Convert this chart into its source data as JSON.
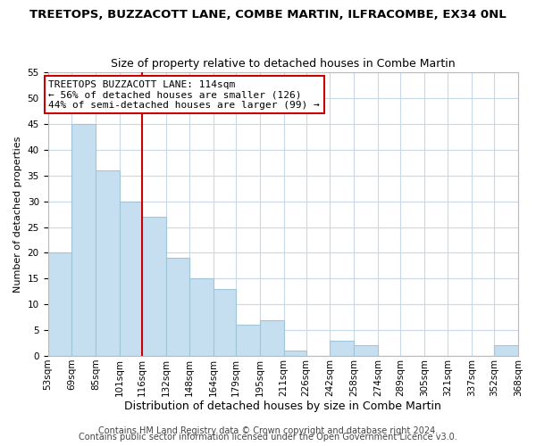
{
  "title": "TREETOPS, BUZZACOTT LANE, COMBE MARTIN, ILFRACOMBE, EX34 0NL",
  "subtitle": "Size of property relative to detached houses in Combe Martin",
  "xlabel": "Distribution of detached houses by size in Combe Martin",
  "ylabel": "Number of detached properties",
  "bar_color": "#c5dff0",
  "bar_edge_color": "#a0c4d8",
  "grid_color": "#c8d8e8",
  "bins": [
    53,
    69,
    85,
    101,
    116,
    132,
    148,
    164,
    179,
    195,
    211,
    226,
    242,
    258,
    274,
    289,
    305,
    321,
    337,
    352,
    368
  ],
  "bin_labels": [
    "53sqm",
    "69sqm",
    "85sqm",
    "101sqm",
    "116sqm",
    "132sqm",
    "148sqm",
    "164sqm",
    "179sqm",
    "195sqm",
    "211sqm",
    "226sqm",
    "242sqm",
    "258sqm",
    "274sqm",
    "289sqm",
    "305sqm",
    "321sqm",
    "337sqm",
    "352sqm",
    "368sqm"
  ],
  "counts": [
    20,
    45,
    36,
    30,
    27,
    19,
    15,
    13,
    6,
    7,
    1,
    0,
    3,
    2,
    0,
    0,
    0,
    0,
    0,
    2
  ],
  "vline_x": 116,
  "vline_color": "#cc0000",
  "annotation_line1": "TREETOPS BUZZACOTT LANE: 114sqm",
  "annotation_line2": "← 56% of detached houses are smaller (126)",
  "annotation_line3": "44% of semi-detached houses are larger (99) →",
  "annotation_box_color": "white",
  "annotation_box_edge_color": "#cc0000",
  "annotation_fontsize": 8.0,
  "ylim": [
    0,
    55
  ],
  "yticks": [
    0,
    5,
    10,
    15,
    20,
    25,
    30,
    35,
    40,
    45,
    50,
    55
  ],
  "footer1": "Contains HM Land Registry data © Crown copyright and database right 2024.",
  "footer2": "Contains public sector information licensed under the Open Government Licence v3.0.",
  "title_fontsize": 9.5,
  "subtitle_fontsize": 9,
  "xlabel_fontsize": 9,
  "ylabel_fontsize": 8,
  "tick_fontsize": 7.5,
  "footer_fontsize": 7
}
